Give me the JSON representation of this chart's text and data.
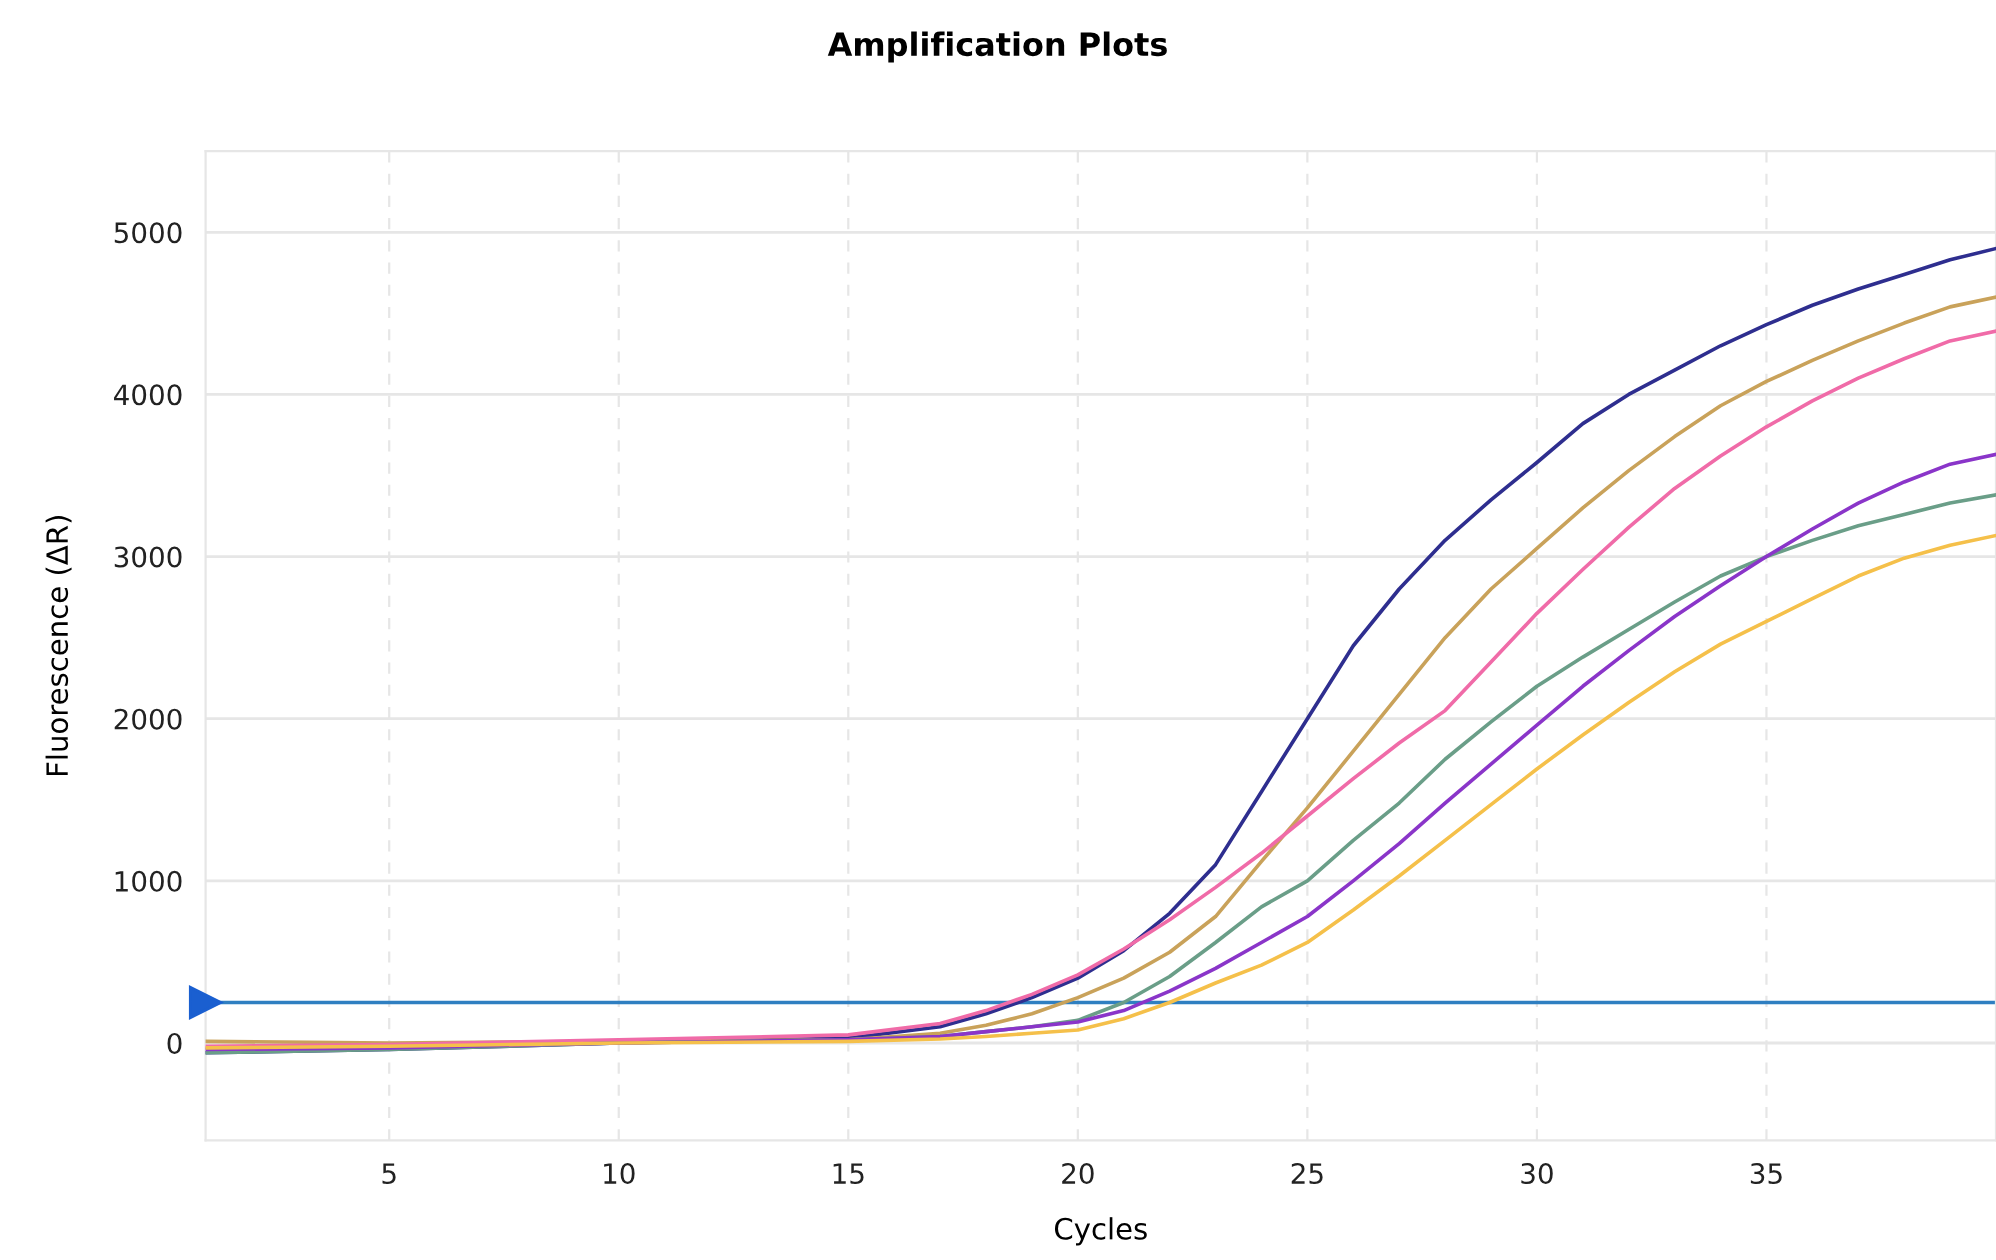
{
  "chart_data": {
    "type": "line",
    "title": "Amplification Plots",
    "xlabel": "Cycles",
    "ylabel": "Fluorescence (ΔR)",
    "x": [
      1,
      5,
      10,
      15,
      17,
      18,
      19,
      20,
      21,
      22,
      23,
      24,
      25,
      26,
      27,
      28,
      29,
      30,
      31,
      32,
      33,
      34,
      35,
      36,
      37,
      38,
      39,
      40
    ],
    "series": [
      {
        "color": "#2e2e8f",
        "values": [
          -60,
          -40,
          0,
          30,
          100,
          180,
          280,
          400,
          570,
          800,
          1100,
          1550,
          2000,
          2450,
          2800,
          3100,
          3350,
          3580,
          3820,
          4000,
          4150,
          4300,
          4430,
          4550,
          4650,
          4740,
          4830,
          4900
        ]
      },
      {
        "color": "#c9a25a",
        "values": [
          10,
          0,
          10,
          20,
          60,
          110,
          180,
          280,
          400,
          560,
          780,
          1120,
          1450,
          1800,
          2150,
          2500,
          2800,
          3050,
          3300,
          3530,
          3740,
          3930,
          4080,
          4210,
          4330,
          4440,
          4540,
          4600
        ]
      },
      {
        "color": "#f06ba8",
        "values": [
          -20,
          -10,
          20,
          50,
          120,
          200,
          300,
          420,
          580,
          760,
          960,
          1170,
          1400,
          1630,
          1850,
          2050,
          2350,
          2650,
          2920,
          3180,
          3420,
          3620,
          3800,
          3960,
          4100,
          4220,
          4330,
          4390
        ]
      },
      {
        "color": "#6a9e88",
        "values": [
          -60,
          -40,
          0,
          20,
          40,
          70,
          100,
          140,
          250,
          410,
          620,
          840,
          1000,
          1250,
          1480,
          1750,
          1980,
          2200,
          2380,
          2550,
          2720,
          2880,
          3000,
          3100,
          3190,
          3260,
          3330,
          3380
        ]
      },
      {
        "color": "#8a35c9",
        "values": [
          -40,
          -30,
          0,
          20,
          40,
          70,
          100,
          130,
          200,
          320,
          460,
          620,
          780,
          1000,
          1230,
          1480,
          1720,
          1960,
          2200,
          2420,
          2630,
          2820,
          3000,
          3170,
          3330,
          3460,
          3570,
          3630
        ]
      },
      {
        "color": "#f5c04a",
        "values": [
          -30,
          -20,
          0,
          10,
          25,
          40,
          60,
          80,
          150,
          250,
          370,
          480,
          620,
          820,
          1030,
          1250,
          1470,
          1690,
          1900,
          2100,
          2290,
          2460,
          2600,
          2740,
          2880,
          2990,
          3070,
          3130
        ]
      }
    ],
    "ref_lines": [
      {
        "axis": "y",
        "value": 250,
        "color": "#2f7fc1"
      }
    ],
    "xlim": [
      1,
      40
    ],
    "xticks": [
      5,
      10,
      15,
      20,
      25,
      30,
      35
    ],
    "ylim": [
      -600,
      5500
    ],
    "yticks": [
      0,
      1000,
      2000,
      3000,
      4000,
      5000
    ],
    "grid": true,
    "marker": "none",
    "line_style": "solid"
  }
}
